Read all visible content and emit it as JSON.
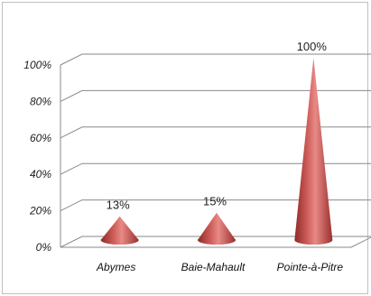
{
  "chart_data": {
    "type": "bar",
    "shape": "cone-3d",
    "categories": [
      "Abymes",
      "Baie-Mahault",
      "Pointe-à-Pitre"
    ],
    "values": [
      13,
      15,
      100
    ],
    "data_labels": [
      "13%",
      "15%",
      "100%"
    ],
    "y_ticks": [
      "0%",
      "20%",
      "40%",
      "60%",
      "80%",
      "100%"
    ],
    "ylim": [
      0,
      100
    ],
    "grid": true,
    "bar_color": "#c0504d"
  }
}
